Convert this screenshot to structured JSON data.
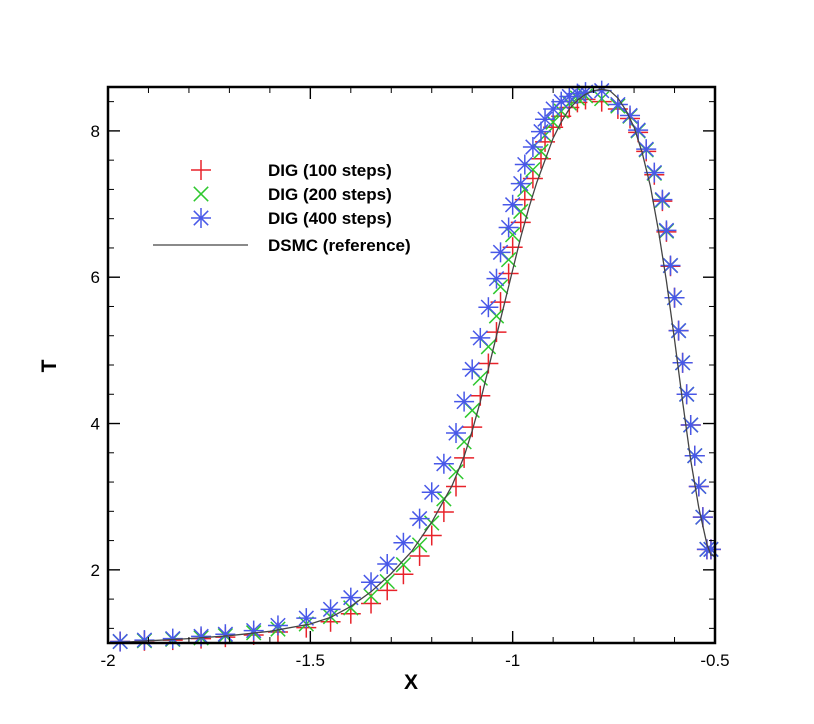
{
  "chart_data": {
    "type": "line",
    "title": "",
    "xlabel": "X",
    "ylabel": "T",
    "xlim": [
      -2,
      -0.5
    ],
    "ylim": [
      1.0,
      8.6
    ],
    "xticks": [
      -2,
      -1.5,
      -1,
      -0.5
    ],
    "xtick_labels": [
      "-2",
      "-1.5",
      "-1",
      "-0.5"
    ],
    "yticks": [
      2,
      4,
      6,
      8
    ],
    "ytick_labels": [
      "2",
      "4",
      "6",
      "8"
    ],
    "grid": false,
    "legend_position": "top-left",
    "series": [
      {
        "name": "DIG (100 steps)",
        "marker": "plus",
        "color": "#e8222a",
        "x": [
          -1.97,
          -1.91,
          -1.84,
          -1.77,
          -1.71,
          -1.64,
          -1.58,
          -1.51,
          -1.45,
          -1.4,
          -1.35,
          -1.31,
          -1.27,
          -1.23,
          -1.2,
          -1.17,
          -1.14,
          -1.12,
          -1.1,
          -1.08,
          -1.06,
          -1.04,
          -1.03,
          -1.01,
          -1.0,
          -0.98,
          -0.97,
          -0.95,
          -0.93,
          -0.92,
          -0.9,
          -0.88,
          -0.86,
          -0.84,
          -0.82,
          -0.78,
          -0.74,
          -0.71,
          -0.69,
          -0.67,
          -0.65,
          -0.63,
          -0.62,
          -0.61,
          -0.6,
          -0.59,
          -0.58,
          -0.57,
          -0.56,
          -0.55,
          -0.54,
          -0.53,
          -0.52,
          -0.51
        ],
        "y": [
          1.02,
          1.03,
          1.04,
          1.06,
          1.08,
          1.11,
          1.15,
          1.21,
          1.29,
          1.4,
          1.54,
          1.72,
          1.94,
          2.19,
          2.47,
          2.79,
          3.14,
          3.53,
          3.95,
          4.38,
          4.82,
          5.25,
          5.66,
          6.05,
          6.41,
          6.75,
          7.06,
          7.35,
          7.62,
          7.85,
          8.05,
          8.2,
          8.32,
          8.39,
          8.43,
          8.4,
          8.3,
          8.17,
          7.98,
          7.72,
          7.4,
          7.04,
          6.62,
          6.15,
          5.72,
          5.27,
          4.83,
          4.4,
          3.98,
          3.56,
          3.14,
          2.72,
          2.28,
          2.28
        ]
      },
      {
        "name": "DIG (200 steps)",
        "marker": "x",
        "color": "#2ec82e",
        "x": [
          -1.97,
          -1.91,
          -1.84,
          -1.77,
          -1.71,
          -1.64,
          -1.58,
          -1.51,
          -1.45,
          -1.4,
          -1.35,
          -1.31,
          -1.27,
          -1.23,
          -1.2,
          -1.17,
          -1.14,
          -1.12,
          -1.1,
          -1.08,
          -1.06,
          -1.04,
          -1.03,
          -1.01,
          -1.0,
          -0.98,
          -0.97,
          -0.95,
          -0.93,
          -0.92,
          -0.9,
          -0.88,
          -0.86,
          -0.84,
          -0.82,
          -0.78,
          -0.74,
          -0.71,
          -0.69,
          -0.67,
          -0.65,
          -0.63,
          -0.62,
          -0.61,
          -0.6,
          -0.59,
          -0.58,
          -0.57,
          -0.56,
          -0.55,
          -0.54,
          -0.53,
          -0.52,
          -0.51
        ],
        "y": [
          1.02,
          1.03,
          1.05,
          1.07,
          1.1,
          1.14,
          1.19,
          1.26,
          1.36,
          1.48,
          1.64,
          1.84,
          2.07,
          2.34,
          2.64,
          2.97,
          3.34,
          3.75,
          4.18,
          4.62,
          5.05,
          5.47,
          5.87,
          6.24,
          6.58,
          6.9,
          7.2,
          7.47,
          7.72,
          7.94,
          8.12,
          8.27,
          8.38,
          8.45,
          8.48,
          8.44,
          8.34,
          8.2,
          8.0,
          7.74,
          7.42,
          7.05,
          6.63,
          6.16,
          5.72,
          5.27,
          4.83,
          4.4,
          3.98,
          3.56,
          3.14,
          2.72,
          2.28,
          2.28
        ]
      },
      {
        "name": "DIG (400 steps)",
        "marker": "star",
        "color": "#4858e8",
        "x": [
          -1.97,
          -1.91,
          -1.84,
          -1.77,
          -1.71,
          -1.64,
          -1.58,
          -1.51,
          -1.45,
          -1.4,
          -1.35,
          -1.31,
          -1.27,
          -1.23,
          -1.2,
          -1.17,
          -1.14,
          -1.12,
          -1.1,
          -1.08,
          -1.06,
          -1.04,
          -1.03,
          -1.01,
          -1.0,
          -0.98,
          -0.97,
          -0.95,
          -0.93,
          -0.92,
          -0.9,
          -0.88,
          -0.86,
          -0.84,
          -0.82,
          -0.78,
          -0.74,
          -0.71,
          -0.69,
          -0.67,
          -0.65,
          -0.63,
          -0.62,
          -0.61,
          -0.6,
          -0.59,
          -0.58,
          -0.57,
          -0.56,
          -0.55,
          -0.54,
          -0.53,
          -0.52,
          -0.51
        ],
        "y": [
          1.02,
          1.04,
          1.06,
          1.09,
          1.12,
          1.17,
          1.24,
          1.34,
          1.46,
          1.62,
          1.83,
          2.08,
          2.37,
          2.7,
          3.06,
          3.45,
          3.87,
          4.3,
          4.74,
          5.17,
          5.59,
          5.98,
          6.34,
          6.68,
          6.99,
          7.28,
          7.54,
          7.78,
          7.99,
          8.16,
          8.3,
          8.4,
          8.47,
          8.51,
          8.53,
          8.55,
          8.36,
          8.21,
          8.01,
          7.75,
          7.43,
          7.06,
          6.64,
          6.16,
          5.72,
          5.27,
          4.83,
          4.4,
          3.98,
          3.56,
          3.14,
          2.72,
          2.28,
          2.28
        ]
      },
      {
        "name": "DSMC (reference)",
        "marker": "none",
        "color": "#444444",
        "x": [
          -2.0,
          -1.9,
          -1.8,
          -1.7,
          -1.6,
          -1.5,
          -1.45,
          -1.4,
          -1.35,
          -1.3,
          -1.25,
          -1.2,
          -1.15,
          -1.12,
          -1.1,
          -1.08,
          -1.06,
          -1.04,
          -1.02,
          -1.0,
          -0.98,
          -0.96,
          -0.94,
          -0.92,
          -0.9,
          -0.88,
          -0.86,
          -0.84,
          -0.82,
          -0.8,
          -0.78,
          -0.76,
          -0.74,
          -0.72,
          -0.7,
          -0.68,
          -0.66,
          -0.64,
          -0.62,
          -0.6,
          -0.58,
          -0.56,
          -0.54,
          -0.52,
          -0.51,
          -0.5
        ],
        "y": [
          1.0,
          1.03,
          1.06,
          1.1,
          1.16,
          1.26,
          1.35,
          1.5,
          1.7,
          1.95,
          2.25,
          2.65,
          3.15,
          3.55,
          3.9,
          4.3,
          4.75,
          5.2,
          5.65,
          6.1,
          6.55,
          6.95,
          7.3,
          7.6,
          7.9,
          8.12,
          8.3,
          8.42,
          8.5,
          8.55,
          8.57,
          8.55,
          8.45,
          8.28,
          8.05,
          7.7,
          7.25,
          6.65,
          5.95,
          5.15,
          4.3,
          3.5,
          2.85,
          2.35,
          2.2,
          2.2
        ]
      }
    ]
  }
}
